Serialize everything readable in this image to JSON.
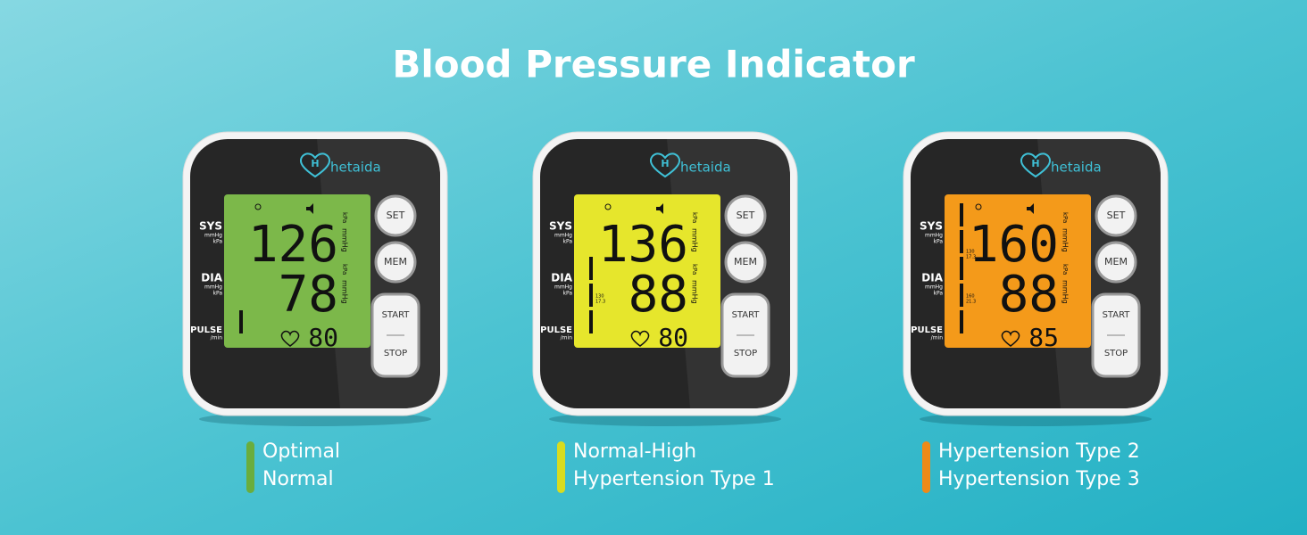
{
  "title": "Blood Pressure Indicator",
  "brand": "hetaida",
  "labels": {
    "sys": "SYS",
    "dia": "DIA",
    "pulse": "PULSE",
    "unit_mmhg": "mmHg",
    "unit_kpa": "kPa",
    "per_min": "/min"
  },
  "buttons": {
    "set": "SET",
    "mem": "MEM",
    "start": "START",
    "stop": "STOP"
  },
  "devices": [
    {
      "screen_color": "#7cb84a",
      "legend_color": "#6aad3d",
      "sys": 126,
      "dia": 78,
      "pulse": 80,
      "scale_marks": [],
      "legend": [
        "Optimal",
        "Normal"
      ]
    },
    {
      "screen_color": "#e6e62c",
      "legend_color": "#d8dc1f",
      "sys": 136,
      "dia": 88,
      "pulse": 80,
      "scale_marks": [
        {
          "mmhg": "130",
          "kpa": "17.3"
        }
      ],
      "legend": [
        "Normal-High",
        "Hypertension Type 1"
      ]
    },
    {
      "screen_color": "#f49a1a",
      "legend_color": "#ee8a18",
      "sys": 160,
      "dia": 88,
      "pulse": 85,
      "scale_marks": [
        {
          "mmhg": "160",
          "kpa": "21.3"
        },
        {
          "mmhg": "130",
          "kpa": "17.3"
        }
      ],
      "legend": [
        "Hypertension Type 2",
        "Hypertension Type 3"
      ]
    }
  ]
}
